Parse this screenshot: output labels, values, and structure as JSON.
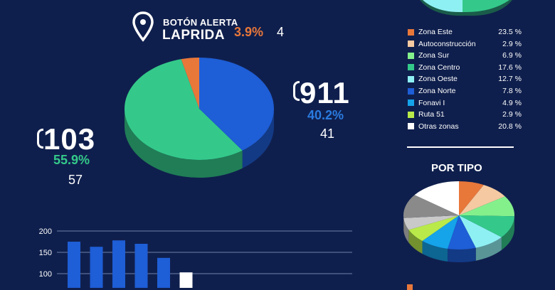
{
  "header": {
    "title_small": "BOTÓN ALERTA",
    "title_big": "LAPRIDA",
    "percent": "3.9%",
    "count": "4"
  },
  "line_911": {
    "number": "911",
    "percent": "40.2%",
    "count": "41"
  },
  "line_103": {
    "number": "103",
    "percent": "55.9%",
    "count": "57"
  },
  "legend_zones": [
    {
      "name": "Zona Este",
      "value": "23.5 %",
      "color": "#e8773a"
    },
    {
      "name": "Autoconstrucción",
      "value": "2.9 %",
      "color": "#f5c9a1"
    },
    {
      "name": "Zona Sur",
      "value": "6.9 %",
      "color": "#84f08c"
    },
    {
      "name": "Zona Centro",
      "value": "17.6 %",
      "color": "#34c98a"
    },
    {
      "name": "Zona Oeste",
      "value": "12.7 %",
      "color": "#8ff0f3"
    },
    {
      "name": "Zona Norte",
      "value": "7.8 %",
      "color": "#1e5ed6"
    },
    {
      "name": "Fonavi I",
      "value": "4.9 %",
      "color": "#15a3ea"
    },
    {
      "name": "Ruta 51",
      "value": "2.9 %",
      "color": "#b9ea4a"
    },
    {
      "name": "Otras zonas",
      "value": "20.8 %",
      "color": "#ffffff"
    }
  ],
  "por_tipo": {
    "title": "POR TIPO"
  },
  "chart_data": [
    {
      "type": "pie",
      "labels": [
        "911",
        "103",
        "Botón Alerta Laprida"
      ],
      "values": [
        40.2,
        55.9,
        3.9
      ],
      "colors": [
        "#1e5ed6",
        "#34c98a",
        "#e8773a"
      ]
    },
    {
      "type": "pie",
      "title": "POR TIPO",
      "values": [
        9,
        10,
        12,
        13,
        11,
        10,
        10,
        8,
        7,
        14,
        18
      ],
      "colors": [
        "#e8773a",
        "#f5c9a1",
        "#84f08c",
        "#34c98a",
        "#8ff0f3",
        "#1e5ed6",
        "#15a3ea",
        "#b9ea4a",
        "#c9c9c9",
        "#8a8a8a",
        "#ffffff"
      ]
    },
    {
      "type": "bar",
      "ylim": [
        0,
        200
      ],
      "yticks": [
        "200",
        "150",
        "100"
      ],
      "values": [
        175,
        163,
        178,
        170,
        137,
        103
      ],
      "colors": [
        "#1e5ed6",
        "#1e5ed6",
        "#1e5ed6",
        "#1e5ed6",
        "#1e5ed6",
        "#ffffff"
      ]
    }
  ]
}
